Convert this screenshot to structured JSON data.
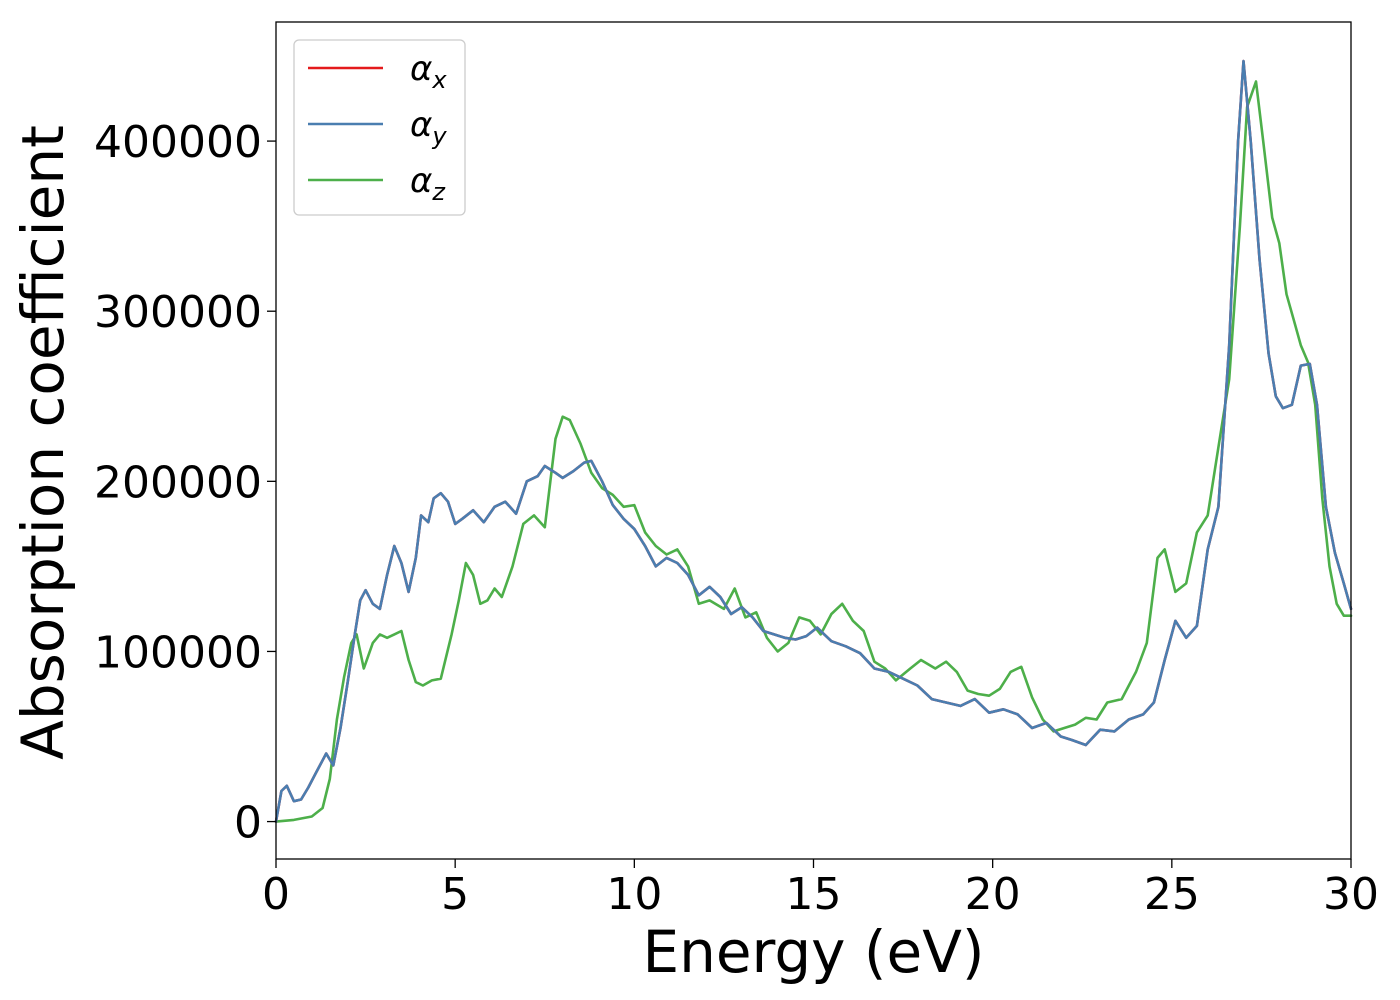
{
  "chart_data": {
    "type": "line",
    "title": "",
    "xlabel": "Energy (eV)",
    "ylabel": "Absorption coefficient",
    "xlim": [
      0,
      30
    ],
    "ylim": [
      -22000,
      470000
    ],
    "xticks": [
      0,
      5,
      10,
      15,
      20,
      25,
      30
    ],
    "xtick_labels": [
      "0",
      "5",
      "10",
      "15",
      "20",
      "25",
      "30"
    ],
    "yticks": [
      0,
      100000,
      200000,
      300000,
      400000
    ],
    "ytick_labels": [
      "0",
      "100000",
      "200000",
      "300000",
      "400000"
    ],
    "grid": false,
    "legend_position": "top-left",
    "series": [
      {
        "name": "αx",
        "legend_symbol": "α",
        "legend_sub": "x",
        "color": "#e41a1c",
        "x": [
          0,
          0.15,
          0.3,
          0.5,
          0.7,
          0.9,
          1.1,
          1.3,
          1.4,
          1.6,
          1.8,
          2.0,
          2.2,
          2.35,
          2.5,
          2.7,
          2.9,
          3.1,
          3.3,
          3.5,
          3.7,
          3.9,
          4.05,
          4.25,
          4.4,
          4.6,
          4.8,
          5.0,
          5.2,
          5.5,
          5.8,
          6.1,
          6.4,
          6.7,
          7.0,
          7.3,
          7.5,
          7.8,
          8.0,
          8.3,
          8.6,
          8.8,
          9.1,
          9.4,
          9.7,
          10.0,
          10.3,
          10.6,
          10.9,
          11.2,
          11.5,
          11.8,
          12.1,
          12.4,
          12.7,
          13.0,
          13.3,
          13.6,
          13.9,
          14.2,
          14.5,
          14.8,
          15.1,
          15.5,
          15.9,
          16.3,
          16.7,
          17.1,
          17.5,
          17.9,
          18.3,
          18.7,
          19.1,
          19.5,
          19.9,
          20.3,
          20.7,
          21.1,
          21.5,
          21.9,
          22.2,
          22.6,
          23.0,
          23.4,
          23.8,
          24.2,
          24.5,
          24.8,
          25.1,
          25.4,
          25.7,
          26.0,
          26.3,
          26.6,
          26.85,
          27.0,
          27.2,
          27.45,
          27.7,
          27.9,
          28.1,
          28.35,
          28.6,
          28.85,
          29.05,
          29.3,
          29.55,
          29.8,
          30.0
        ],
        "values": [
          0,
          18000,
          21000,
          12000,
          13000,
          20000,
          28000,
          36000,
          40000,
          33000,
          55000,
          82000,
          110000,
          130000,
          136000,
          128000,
          125000,
          145000,
          162000,
          152000,
          135000,
          155000,
          180000,
          176000,
          190000,
          193000,
          188000,
          175000,
          178000,
          183000,
          176000,
          185000,
          188000,
          181000,
          200000,
          203000,
          209000,
          205000,
          202000,
          206000,
          211000,
          212000,
          200000,
          186000,
          178000,
          172000,
          162000,
          150000,
          155000,
          152000,
          145000,
          133000,
          138000,
          132000,
          122000,
          126000,
          120000,
          112000,
          110000,
          108000,
          107000,
          109000,
          114000,
          106000,
          103000,
          99000,
          90000,
          88000,
          84000,
          80000,
          72000,
          70000,
          68000,
          72000,
          64000,
          66000,
          63000,
          55000,
          58000,
          50000,
          48000,
          45000,
          54000,
          53000,
          60000,
          63000,
          70000,
          95000,
          118000,
          108000,
          115000,
          160000,
          185000,
          280000,
          400000,
          447000,
          400000,
          330000,
          275000,
          250000,
          243000,
          245000,
          268000,
          269000,
          245000,
          185000,
          158000,
          140000,
          125000
        ]
      },
      {
        "name": "αy",
        "legend_symbol": "α",
        "legend_sub": "y",
        "color": "#4a7eb0",
        "x": [
          0,
          0.15,
          0.3,
          0.5,
          0.7,
          0.9,
          1.1,
          1.3,
          1.4,
          1.6,
          1.8,
          2.0,
          2.2,
          2.35,
          2.5,
          2.7,
          2.9,
          3.1,
          3.3,
          3.5,
          3.7,
          3.9,
          4.05,
          4.25,
          4.4,
          4.6,
          4.8,
          5.0,
          5.2,
          5.5,
          5.8,
          6.1,
          6.4,
          6.7,
          7.0,
          7.3,
          7.5,
          7.8,
          8.0,
          8.3,
          8.6,
          8.8,
          9.1,
          9.4,
          9.7,
          10.0,
          10.3,
          10.6,
          10.9,
          11.2,
          11.5,
          11.8,
          12.1,
          12.4,
          12.7,
          13.0,
          13.3,
          13.6,
          13.9,
          14.2,
          14.5,
          14.8,
          15.1,
          15.5,
          15.9,
          16.3,
          16.7,
          17.1,
          17.5,
          17.9,
          18.3,
          18.7,
          19.1,
          19.5,
          19.9,
          20.3,
          20.7,
          21.1,
          21.5,
          21.9,
          22.2,
          22.6,
          23.0,
          23.4,
          23.8,
          24.2,
          24.5,
          24.8,
          25.1,
          25.4,
          25.7,
          26.0,
          26.3,
          26.6,
          26.85,
          27.0,
          27.2,
          27.45,
          27.7,
          27.9,
          28.1,
          28.35,
          28.6,
          28.85,
          29.05,
          29.3,
          29.55,
          29.8,
          30.0
        ],
        "values": [
          0,
          18000,
          21000,
          12000,
          13000,
          20000,
          28000,
          36000,
          40000,
          33000,
          55000,
          82000,
          110000,
          130000,
          136000,
          128000,
          125000,
          145000,
          162000,
          152000,
          135000,
          155000,
          180000,
          176000,
          190000,
          193000,
          188000,
          175000,
          178000,
          183000,
          176000,
          185000,
          188000,
          181000,
          200000,
          203000,
          209000,
          205000,
          202000,
          206000,
          211000,
          212000,
          200000,
          186000,
          178000,
          172000,
          162000,
          150000,
          155000,
          152000,
          145000,
          133000,
          138000,
          132000,
          122000,
          126000,
          120000,
          112000,
          110000,
          108000,
          107000,
          109000,
          114000,
          106000,
          103000,
          99000,
          90000,
          88000,
          84000,
          80000,
          72000,
          70000,
          68000,
          72000,
          64000,
          66000,
          63000,
          55000,
          58000,
          50000,
          48000,
          45000,
          54000,
          53000,
          60000,
          63000,
          70000,
          95000,
          118000,
          108000,
          115000,
          160000,
          185000,
          280000,
          400000,
          447000,
          400000,
          330000,
          275000,
          250000,
          243000,
          245000,
          268000,
          269000,
          245000,
          185000,
          158000,
          140000,
          125000
        ]
      },
      {
        "name": "αz",
        "legend_symbol": "α",
        "legend_sub": "z",
        "color": "#4daf4a",
        "x": [
          0,
          0.5,
          1.0,
          1.3,
          1.5,
          1.7,
          1.9,
          2.1,
          2.25,
          2.45,
          2.7,
          2.9,
          3.1,
          3.3,
          3.5,
          3.7,
          3.9,
          4.1,
          4.35,
          4.6,
          4.9,
          5.1,
          5.3,
          5.5,
          5.7,
          5.9,
          6.1,
          6.3,
          6.6,
          6.9,
          7.2,
          7.5,
          7.8,
          8.0,
          8.2,
          8.5,
          8.8,
          9.1,
          9.4,
          9.7,
          10.0,
          10.3,
          10.6,
          10.9,
          11.2,
          11.5,
          11.8,
          12.1,
          12.5,
          12.8,
          13.1,
          13.4,
          13.7,
          14.0,
          14.3,
          14.6,
          14.9,
          15.2,
          15.5,
          15.8,
          16.1,
          16.4,
          16.7,
          17.0,
          17.3,
          17.7,
          18.0,
          18.4,
          18.7,
          19.0,
          19.3,
          19.6,
          19.9,
          20.2,
          20.5,
          20.8,
          21.1,
          21.4,
          21.7,
          22.0,
          22.3,
          22.6,
          22.9,
          23.2,
          23.6,
          24.0,
          24.3,
          24.6,
          24.8,
          25.1,
          25.4,
          25.7,
          26.0,
          26.3,
          26.6,
          26.9,
          27.1,
          27.35,
          27.55,
          27.8,
          28.0,
          28.2,
          28.4,
          28.6,
          28.8,
          29.0,
          29.2,
          29.4,
          29.6,
          29.8,
          30.0
        ],
        "values": [
          0,
          1000,
          3000,
          8000,
          25000,
          60000,
          85000,
          105000,
          110000,
          90000,
          105000,
          110000,
          108000,
          110000,
          112000,
          95000,
          82000,
          80000,
          83000,
          84000,
          110000,
          130000,
          152000,
          145000,
          128000,
          130000,
          137000,
          132000,
          150000,
          175000,
          180000,
          173000,
          225000,
          238000,
          236000,
          222000,
          205000,
          196000,
          192000,
          185000,
          186000,
          170000,
          162000,
          157000,
          160000,
          150000,
          128000,
          130000,
          125000,
          137000,
          120000,
          123000,
          108000,
          100000,
          105000,
          120000,
          118000,
          110000,
          122000,
          128000,
          118000,
          112000,
          94000,
          90000,
          83000,
          90000,
          95000,
          90000,
          94000,
          88000,
          77000,
          75000,
          74000,
          78000,
          88000,
          91000,
          73000,
          60000,
          53000,
          55000,
          57000,
          61000,
          60000,
          70000,
          72000,
          88000,
          105000,
          155000,
          160000,
          135000,
          140000,
          170000,
          180000,
          220000,
          260000,
          350000,
          420000,
          435000,
          400000,
          355000,
          340000,
          310000,
          295000,
          280000,
          270000,
          245000,
          190000,
          150000,
          128000,
          121000,
          121000
        ]
      }
    ]
  }
}
